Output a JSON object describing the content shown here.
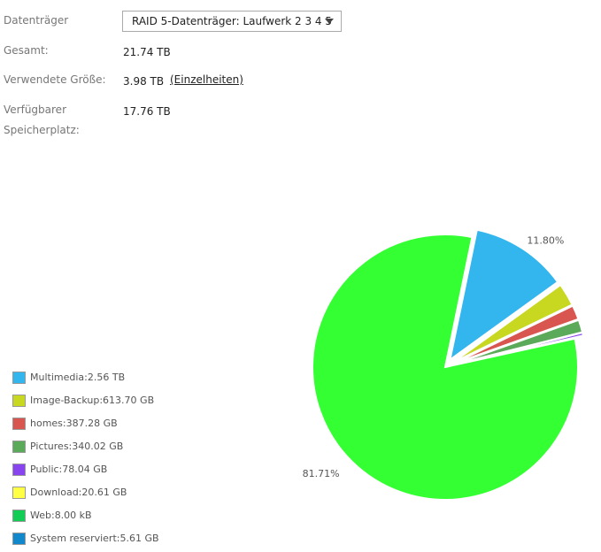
{
  "form": {
    "rows": [
      {
        "label": "Datenträger",
        "value": "RAID 5-Datenträger: Laufwerk  2  3  4  5"
      },
      {
        "label": "Gesamt:",
        "value": "21.74 TB"
      },
      {
        "label": "Verwendete Größe:",
        "value": "3.98 TB"
      },
      {
        "label": "Verfügbarer Speicherplatz:",
        "value": "17.76 TB"
      }
    ],
    "details_link": "(Einzelheiten)"
  },
  "chart_data": {
    "type": "pie",
    "categories": [
      "Multimedia:2.56 TB",
      "Image-Backup:613.70 GB",
      "homes:387.28 GB",
      "Pictures:340.02 GB",
      "Public:78.04 GB",
      "Download:20.61 GB",
      "Web:8.00 kB",
      "System reserviert:5.61 GB",
      null
    ],
    "values": [
      11.8,
      2.76,
      1.74,
      1.53,
      0.35,
      0.09,
      0,
      0.03,
      81.71
    ],
    "value_labels": [
      "11.80%",
      null,
      null,
      null,
      null,
      null,
      null,
      null,
      "81.71%"
    ],
    "colors": [
      "#33b5ee",
      "#c8d820",
      "#d95550",
      "#5aaa5a",
      "#8844ee",
      "#ffff44",
      "#11cc55",
      "#1188cc",
      "#33ff33"
    ]
  }
}
